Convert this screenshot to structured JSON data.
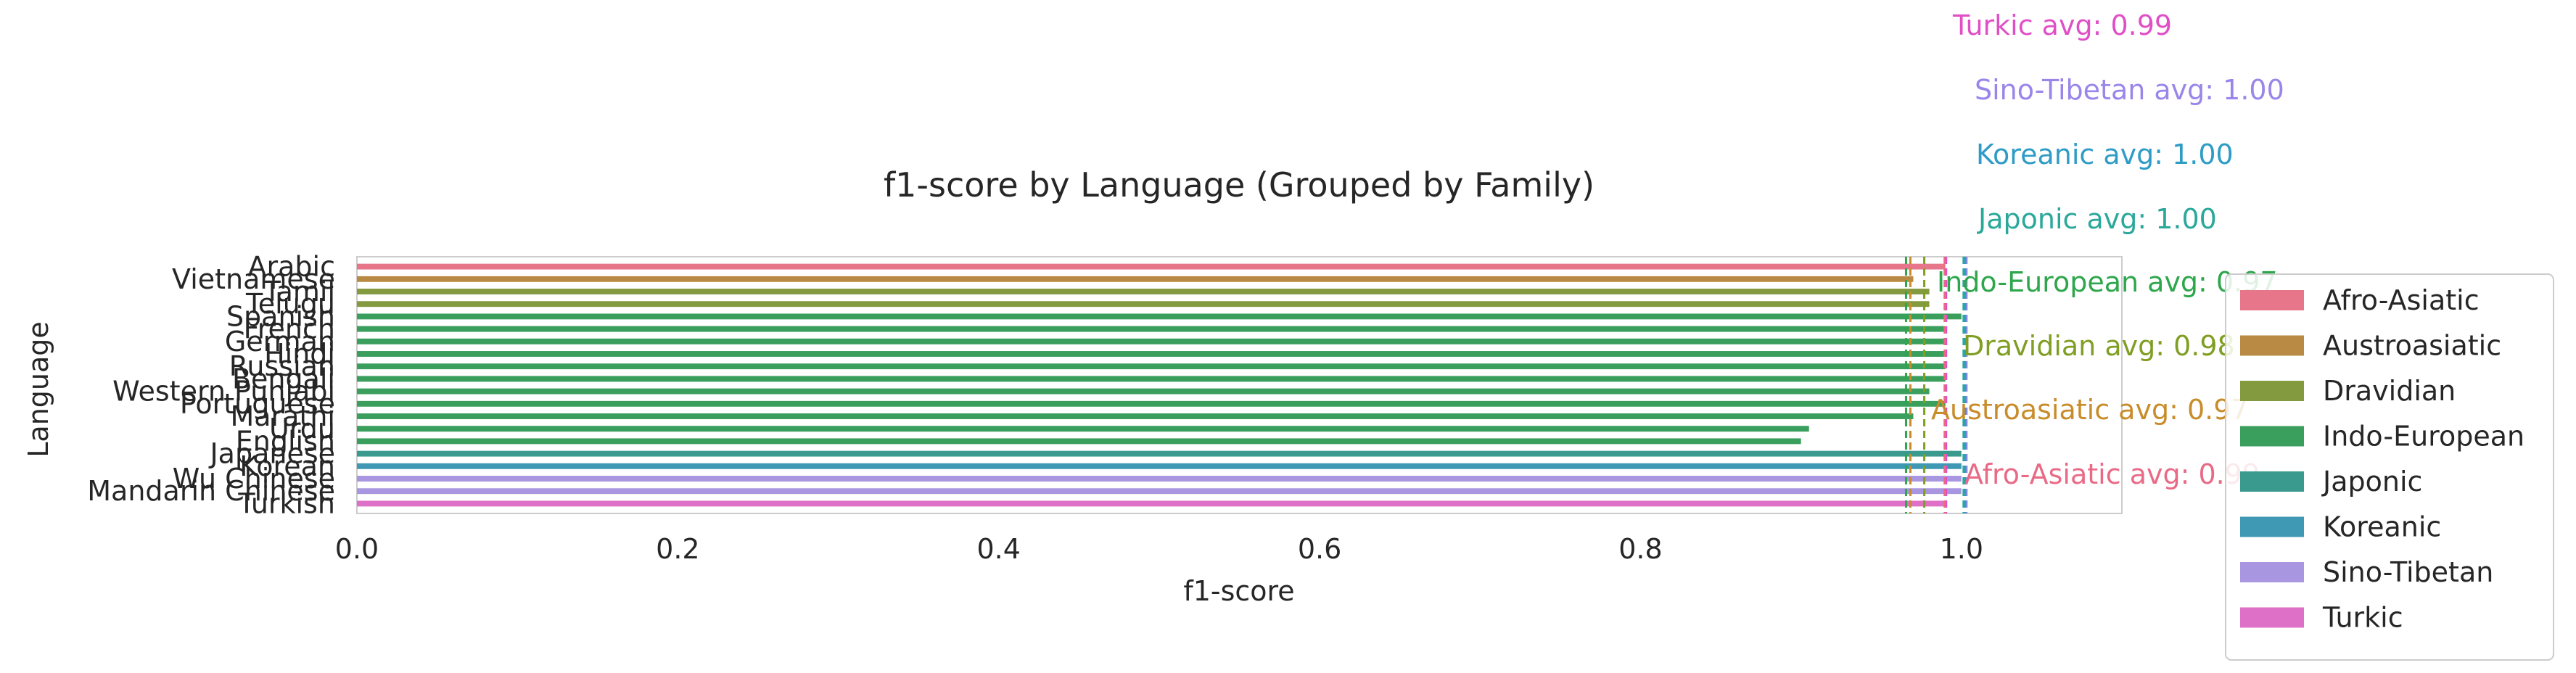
{
  "chart_data": {
    "type": "bar",
    "orientation": "horizontal",
    "title": "f1-score by Language (Grouped by Family)",
    "xlabel": "f1-score",
    "ylabel": "Language",
    "xlim": [
      0.0,
      1.1
    ],
    "xticks": [
      "0.0",
      "0.2",
      "0.4",
      "0.6",
      "0.8",
      "1.0"
    ],
    "grid": false,
    "legend_position": "outside-right",
    "categories": [
      "Arabic",
      "Vietnamese",
      "Tamil",
      "Telugu",
      "Spanish",
      "French",
      "German",
      "Hindi",
      "Russian",
      "Bengali",
      "Western Punjabi",
      "Portuguese",
      "Marathi",
      "Urdu",
      "English",
      "Japanese",
      "Korean",
      "Wu Chinese",
      "Mandarin Chinese",
      "Turkish"
    ],
    "families": [
      "Afro-Asiatic",
      "Austroasiatic",
      "Dravidian",
      "Dravidian",
      "Indo-European",
      "Indo-European",
      "Indo-European",
      "Indo-European",
      "Indo-European",
      "Indo-European",
      "Indo-European",
      "Indo-European",
      "Indo-European",
      "Indo-European",
      "Indo-European",
      "Japonic",
      "Koreanic",
      "Sino-Tibetan",
      "Sino-Tibetan",
      "Turkic"
    ],
    "values": [
      0.99,
      0.97,
      0.98,
      0.98,
      1.0,
      0.99,
      0.99,
      0.99,
      0.99,
      0.99,
      0.98,
      0.99,
      0.97,
      0.905,
      0.9,
      1.0,
      1.0,
      1.0,
      1.0,
      0.99
    ],
    "legend": [
      {
        "name": "Afro-Asiatic",
        "color": "#e8768a"
      },
      {
        "name": "Austroasiatic",
        "color": "#b98a43"
      },
      {
        "name": "Dravidian",
        "color": "#849a3f"
      },
      {
        "name": "Indo-European",
        "color": "#3a9e5c"
      },
      {
        "name": "Japonic",
        "color": "#3a9a8e"
      },
      {
        "name": "Koreanic",
        "color": "#3f98b4"
      },
      {
        "name": "Sino-Tibetan",
        "color": "#a996e0"
      },
      {
        "name": "Turkic",
        "color": "#df70c8"
      }
    ],
    "annotations": [
      {
        "family": "Turkic",
        "text": "Turkic avg: 0.99",
        "value": 0.99,
        "color": "#e04fc6"
      },
      {
        "family": "Sino-Tibetan",
        "text": "Sino-Tibetan avg: 1.00",
        "value": 1.0,
        "color": "#9a86ea"
      },
      {
        "family": "Koreanic",
        "text": "Koreanic avg: 1.00",
        "value": 1.0,
        "color": "#2e9cc6"
      },
      {
        "family": "Japonic",
        "text": "Japonic avg: 1.00",
        "value": 1.0,
        "color": "#2aa89a"
      },
      {
        "family": "Indo-European",
        "text": "Indo-European avg: 0.97",
        "value": 0.97,
        "color": "#2ea64c"
      },
      {
        "family": "Dravidian",
        "text": "Dravidian avg: 0.98",
        "value": 0.98,
        "color": "#7f9e22"
      },
      {
        "family": "Austroasiatic",
        "text": "Austroasiatic avg: 0.97",
        "value": 0.97,
        "color": "#c98c2a"
      },
      {
        "family": "Afro-Asiatic",
        "text": "Afro-Asiatic avg: 0.99",
        "value": 0.99,
        "color": "#e96a86"
      }
    ]
  }
}
